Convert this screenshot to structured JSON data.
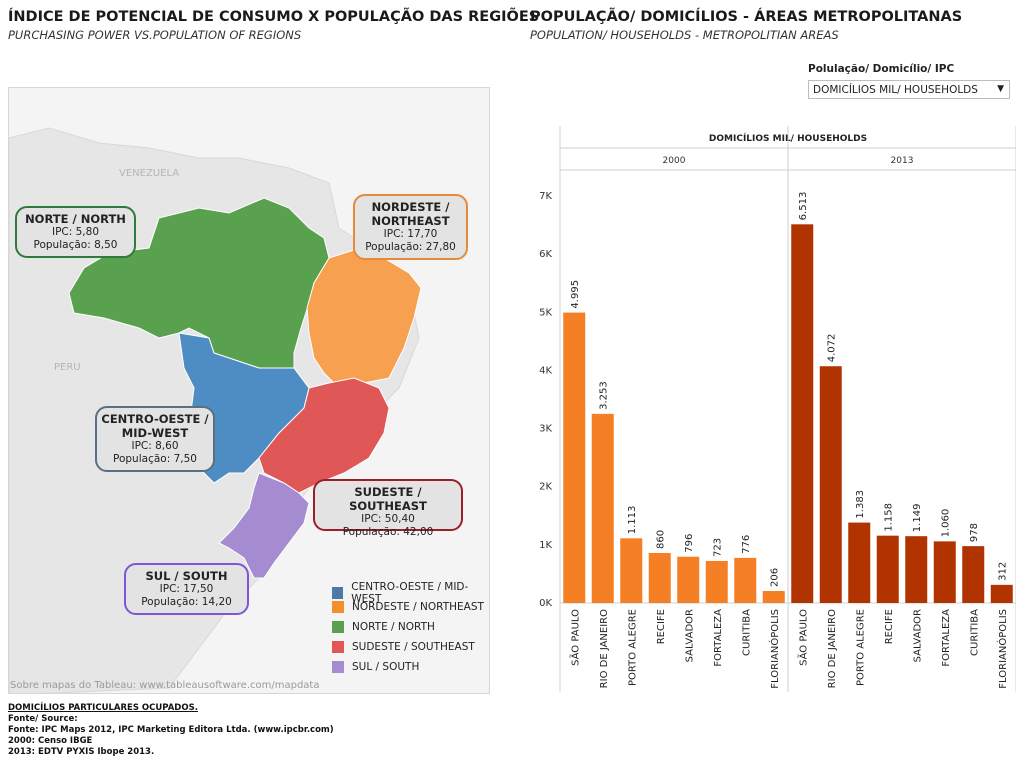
{
  "left": {
    "title": "ÍNDICE DE POTENCIAL DE CONSUMO X POPULAÇÃO DAS REGIÕES",
    "subtitle": "PURCHASING POWER VS.POPULATION OF REGIONS"
  },
  "right": {
    "title": "POPULAÇÃO/ DOMICÍLIOS  - ÁREAS METROPOLITANAS",
    "subtitle": "POPULATION/ HOUSEHOLDS - METROPOLITIAN AREAS"
  },
  "map": {
    "country_labels": {
      "venezuela": "VENEZUELA",
      "peru": "PERU"
    },
    "attribution": "Sobre mapas do Tableau: www.tableausoftware.com/mapdata",
    "regions": [
      {
        "key": "norte",
        "name": "NORTE / NORTH",
        "ipc": "IPC: 5,80",
        "pop": "População: 8,50",
        "color": "#59a14f"
      },
      {
        "key": "nordeste",
        "name1": "NORDESTE /",
        "name2": "NORTHEAST",
        "ipc": "IPC: 17,70",
        "pop": "População: 27,80",
        "color": "#f28e2b"
      },
      {
        "key": "centro",
        "name1": "CENTRO-OESTE /",
        "name2": "MID-WEST",
        "ipc": "IPC: 8,60",
        "pop": "População: 7,50",
        "color": "#4e79a7"
      },
      {
        "key": "sudeste",
        "name": "SUDESTE / SOUTHEAST",
        "ipc": "IPC: 50,40",
        "pop": "População: 42,00",
        "color": "#e15759"
      },
      {
        "key": "sul",
        "name": "SUL / SOUTH",
        "ipc": "IPC: 17,50",
        "pop": "População: 14,20",
        "color": "#9f7fcc"
      }
    ],
    "legend": [
      {
        "label": "CENTRO-OESTE / MID-WEST",
        "color": "#4e79a7"
      },
      {
        "label": "NORDESTE / NORTHEAST",
        "color": "#f28e2b"
      },
      {
        "label": "NORTE / NORTH",
        "color": "#59a14f"
      },
      {
        "label": "SUDESTE / SOUTHEAST",
        "color": "#e15759"
      },
      {
        "label": "SUL / SOUTH",
        "color": "#a58bd0"
      }
    ]
  },
  "filter": {
    "label": "Polulação/ Domicílio/ IPC",
    "selected": "DOMICÍLIOS MIL/ HOUSEHOLDS"
  },
  "chart_data": {
    "type": "bar",
    "title": "DOMICÍLIOS MIL/ HOUSEHOLDS",
    "y_ticks": [
      "0K",
      "1K",
      "2K",
      "3K",
      "4K",
      "5K",
      "6K",
      "7K"
    ],
    "ylim": [
      0,
      7000
    ],
    "panels": [
      {
        "name": "2000",
        "color": "#f57f25",
        "categories": [
          "SÃO PAULO",
          "RIO DE JANEIRO",
          "PORTO ALEGRE",
          "RECIFE",
          "SALVADOR",
          "FORTALEZA",
          "CURITIBA",
          "FLORIANÓPOLIS"
        ],
        "values": [
          4995,
          3253,
          1113,
          860,
          796,
          723,
          776,
          206
        ],
        "labels": [
          "4.995",
          "3.253",
          "1.113",
          "860",
          "796",
          "723",
          "776",
          "206"
        ]
      },
      {
        "name": "2013",
        "color": "#b13300",
        "categories": [
          "SÃO PAULO",
          "RIO DE JANEIRO",
          "PORTO ALEGRE",
          "RECIFE",
          "SALVADOR",
          "FORTALEZA",
          "CURITIBA",
          "FLORIANÓPOLIS"
        ],
        "values": [
          6513,
          4072,
          1383,
          1158,
          1149,
          1060,
          978,
          312
        ],
        "labels": [
          "6.513",
          "4.072",
          "1.383",
          "1.158",
          "1.149",
          "1.060",
          "978",
          "312"
        ]
      }
    ]
  },
  "footer": {
    "line1": "DOMICÍLIOS PARTICULARES OCUPADOS.",
    "line2": "Fonte/ Source:",
    "line3": "Fonte: IPC Maps 2012, IPC Marketing Editora Ltda. (www.ipcbr.com)",
    "line4": "2000: Censo IBGE",
    "line5": "2013: EDTV  PYXIS Ibope 2013."
  }
}
